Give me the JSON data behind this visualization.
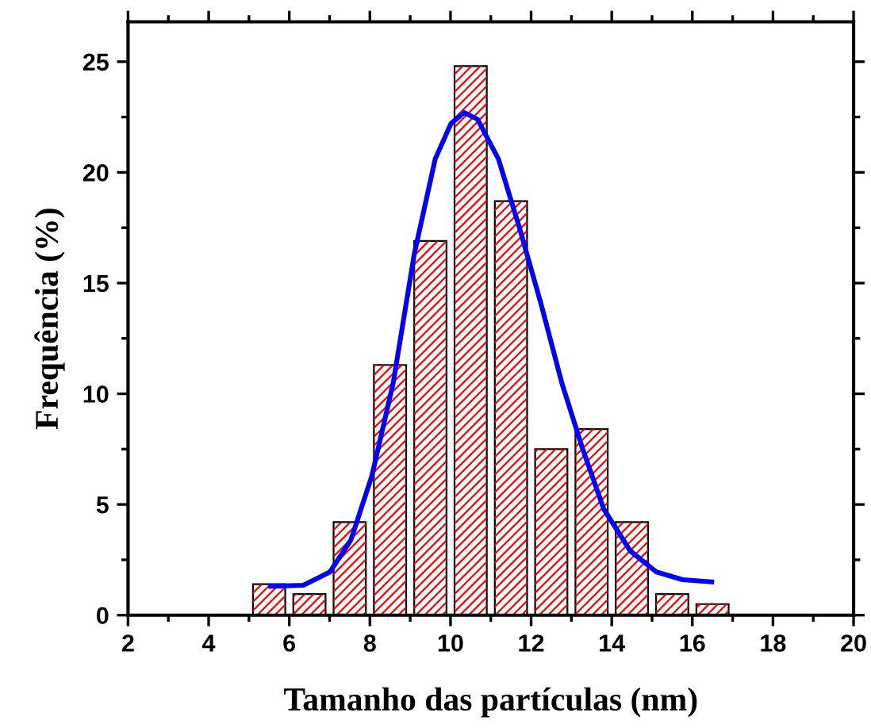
{
  "chart_data": {
    "type": "histogram",
    "xlabel": "Tamanho das partículas (nm)",
    "ylabel": "Frequência (%)",
    "xlim": [
      2,
      20
    ],
    "xticks": [
      2,
      4,
      6,
      8,
      10,
      12,
      14,
      16,
      18,
      20
    ],
    "ylim": [
      0,
      26.8
    ],
    "yticks": [
      0,
      5,
      10,
      15,
      20,
      25
    ],
    "grid": false,
    "series": [
      {
        "color": "#ff0000",
        "bins": [
          5,
          6,
          7,
          8,
          9,
          10,
          11,
          12,
          13,
          14,
          15,
          16,
          17
        ],
        "values": [
          1.4,
          0.95,
          4.2,
          11.3,
          16.9,
          24.8,
          18.7,
          7.5,
          8.4,
          4.2,
          0.95,
          0.5
        ]
      },
      {
        "type": "line",
        "color": "#0000ff",
        "x": [
          5.54,
          6.35,
          7.01,
          7.53,
          8.05,
          8.58,
          9.1,
          9.62,
          10.01,
          10.34,
          10.67,
          11.19,
          11.71,
          12.24,
          12.76,
          13.28,
          13.8,
          14.46,
          15.11,
          15.76,
          16.48
        ],
        "values": [
          1.3,
          1.35,
          1.95,
          3.4,
          6.3,
          10.5,
          16.3,
          20.6,
          22.2,
          22.7,
          22.4,
          20.6,
          17.5,
          14.1,
          10.5,
          7.5,
          4.8,
          2.9,
          1.95,
          1.6,
          1.5
        ]
      }
    ]
  }
}
